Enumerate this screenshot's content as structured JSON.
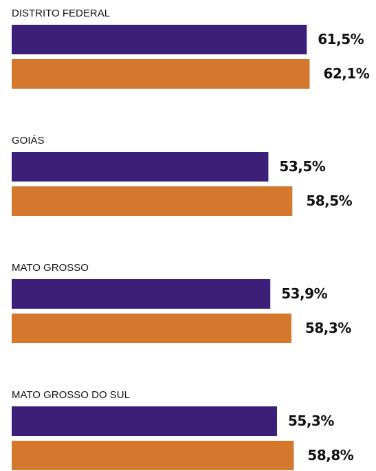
{
  "chart_data": {
    "type": "hbar",
    "categories": [
      "DISTRITO FEDERAL",
      "GOIÁS",
      "MATO GROSSO",
      "MATO GROSSO DO SUL"
    ],
    "series": [
      {
        "color": "#3b1f78",
        "values": [
          61.5,
          53.5,
          53.9,
          55.3
        ],
        "value_labels": [
          "61,5%",
          "53,5%",
          "53,9%",
          "55,3%"
        ]
      },
      {
        "color": "#d4782e",
        "values": [
          62.1,
          58.5,
          58.3,
          58.8
        ],
        "value_labels": [
          "62,1%",
          "58,5%",
          "58,3%",
          "58,8%"
        ]
      }
    ]
  }
}
